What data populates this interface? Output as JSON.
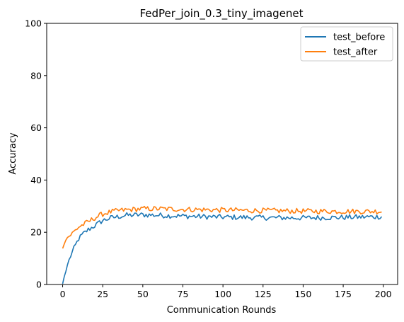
{
  "chart_data": {
    "type": "line",
    "title": "FedPer_join_0.3_tiny_imagenet",
    "xlabel": "Communication Rounds",
    "ylabel": "Accuracy",
    "xlim": [
      -9.95,
      208.95
    ],
    "ylim": [
      0,
      100
    ],
    "xticks": [
      0,
      25,
      50,
      75,
      100,
      125,
      150,
      175,
      200
    ],
    "yticks": [
      0,
      20,
      40,
      60,
      80,
      100
    ],
    "grid": false,
    "legend_position": "upper right",
    "series": [
      {
        "name": "test_before",
        "color": "#1f77b4",
        "anchors": [
          [
            0,
            0.3
          ],
          [
            1,
            3
          ],
          [
            2,
            5
          ],
          [
            3,
            7.5
          ],
          [
            5,
            11
          ],
          [
            8,
            15
          ],
          [
            10,
            17.5
          ],
          [
            13,
            19.5
          ],
          [
            16,
            21
          ],
          [
            20,
            22.5
          ],
          [
            25,
            24.5
          ],
          [
            30,
            25.5
          ],
          [
            35,
            26
          ],
          [
            40,
            26.5
          ],
          [
            50,
            26.7
          ],
          [
            60,
            26.5
          ],
          [
            75,
            26.2
          ],
          [
            100,
            25.8
          ],
          [
            125,
            25.6
          ],
          [
            150,
            25.5
          ],
          [
            175,
            25.7
          ],
          [
            200,
            26
          ]
        ],
        "noise_amplitude": 1.0
      },
      {
        "name": "test_after",
        "color": "#ff7f0e",
        "anchors": [
          [
            0,
            13.8
          ],
          [
            1,
            15.5
          ],
          [
            2,
            17
          ],
          [
            3,
            18
          ],
          [
            5,
            19
          ],
          [
            8,
            20.8
          ],
          [
            10,
            22
          ],
          [
            13,
            23
          ],
          [
            16,
            24
          ],
          [
            20,
            25.5
          ],
          [
            25,
            27
          ],
          [
            30,
            27.8
          ],
          [
            35,
            28.3
          ],
          [
            40,
            28.6
          ],
          [
            50,
            29
          ],
          [
            60,
            29
          ],
          [
            75,
            28.8
          ],
          [
            100,
            28.5
          ],
          [
            125,
            28.3
          ],
          [
            150,
            28.1
          ],
          [
            175,
            28
          ],
          [
            200,
            28
          ]
        ],
        "noise_amplitude": 1.0
      }
    ]
  }
}
